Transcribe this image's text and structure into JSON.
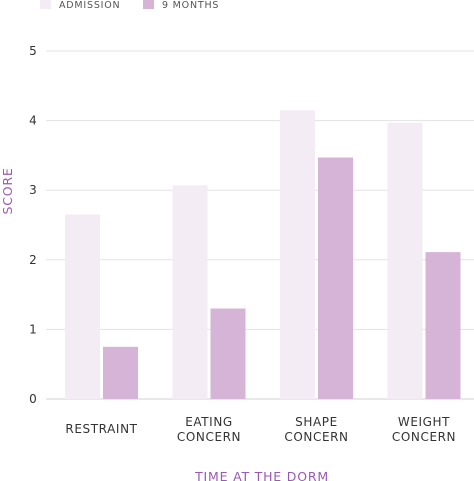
{
  "chart_data": {
    "type": "bar",
    "title": "",
    "xlabel": "TIME AT THE DORM",
    "ylabel": "SCORE",
    "categories": [
      [
        "RESTRAINT"
      ],
      [
        "EATING",
        "CONCERN"
      ],
      [
        "SHAPE",
        "CONCERN"
      ],
      [
        "WEIGHT",
        "CONCERN"
      ]
    ],
    "series": [
      {
        "name": "ADMISSION",
        "color": "#f3ecf5",
        "values": [
          2.65,
          3.07,
          4.15,
          3.97
        ]
      },
      {
        "name": "9 MONTHS",
        "color": "#d5b4d8",
        "values": [
          0.75,
          1.3,
          3.47,
          2.11
        ]
      }
    ],
    "ylim": [
      0,
      5
    ],
    "yticks": [
      0,
      1,
      2,
      3,
      4,
      5
    ],
    "grid": true,
    "legend": "top-left",
    "colors": {
      "axis_title": "#9b59b6",
      "grid": "#e3e3e3"
    }
  }
}
